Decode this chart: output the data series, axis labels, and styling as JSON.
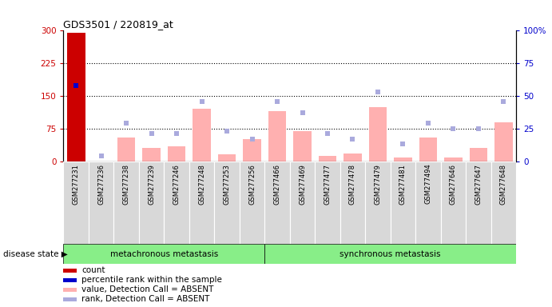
{
  "title": "GDS3501 / 220819_at",
  "samples": [
    "GSM277231",
    "GSM277236",
    "GSM277238",
    "GSM277239",
    "GSM277246",
    "GSM277248",
    "GSM277253",
    "GSM277256",
    "GSM277466",
    "GSM277469",
    "GSM277477",
    "GSM277478",
    "GSM277479",
    "GSM277481",
    "GSM277494",
    "GSM277646",
    "GSM277647",
    "GSM277648"
  ],
  "bar_values": [
    295,
    0,
    55,
    30,
    35,
    120,
    15,
    50,
    115,
    70,
    12,
    18,
    125,
    8,
    55,
    8,
    30,
    90
  ],
  "rank_dots": [
    58,
    4,
    29,
    21,
    21,
    46,
    23,
    17,
    46,
    37,
    21,
    17,
    53,
    13,
    29,
    25,
    25,
    46
  ],
  "bar_is_special": [
    true,
    false,
    false,
    false,
    false,
    false,
    false,
    false,
    false,
    false,
    false,
    false,
    false,
    false,
    false,
    false,
    false,
    false
  ],
  "dot_is_special": [
    true,
    false,
    false,
    false,
    false,
    false,
    false,
    false,
    false,
    false,
    false,
    false,
    false,
    false,
    false,
    false,
    false,
    false
  ],
  "groups": [
    {
      "label": "metachronous metastasis",
      "start": 0,
      "end": 7
    },
    {
      "label": "synchronous metastasis",
      "start": 8,
      "end": 17
    }
  ],
  "ylim_left": [
    0,
    300
  ],
  "ylim_right": [
    0,
    100
  ],
  "yticks_left": [
    0,
    75,
    150,
    225,
    300
  ],
  "ytick_labels_left": [
    "0",
    "75",
    "150",
    "225",
    "300"
  ],
  "yticks_right": [
    0,
    25,
    50,
    75,
    100
  ],
  "ytick_labels_right": [
    "0",
    "25",
    "50",
    "75",
    "100%"
  ],
  "hlines": [
    75,
    150,
    225
  ],
  "left_axis_color": "#cc0000",
  "right_axis_color": "#0000cc",
  "bar_color_special": "#cc0000",
  "bar_color_absent": "#ffb0b0",
  "dot_color_special": "#0000cc",
  "dot_color_absent": "#aaaadd",
  "group_bg_color": "#88ee88",
  "cell_bg_color": "#d8d8d8",
  "disease_state_label": "disease state",
  "legend_items": [
    {
      "label": "count",
      "color": "#cc0000"
    },
    {
      "label": "percentile rank within the sample",
      "color": "#0000cc"
    },
    {
      "label": "value, Detection Call = ABSENT",
      "color": "#ffb0b0"
    },
    {
      "label": "rank, Detection Call = ABSENT",
      "color": "#aaaadd"
    }
  ]
}
